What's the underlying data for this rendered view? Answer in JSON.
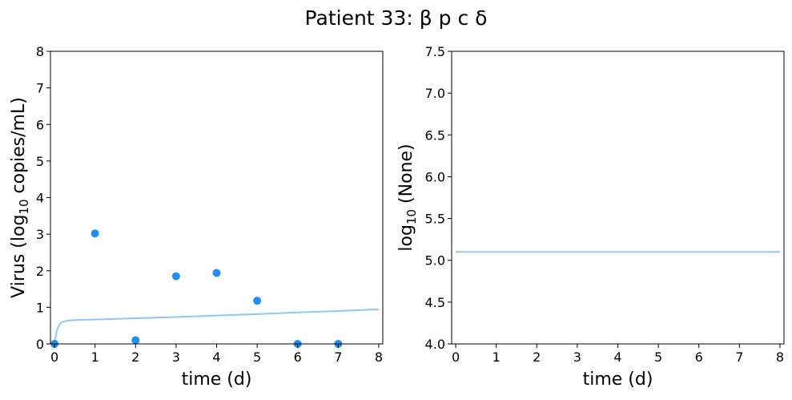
{
  "figure": {
    "title": "Patient 33: β p c δ"
  },
  "chart_data": [
    {
      "type": "scatter",
      "xlabel": "time (d)",
      "ylabel_prefix": "Virus (log",
      "ylabel_sub": "10",
      "ylabel_suffix": " copies/mL)",
      "xlim": [
        -0.1,
        8.1
      ],
      "ylim": [
        0,
        8
      ],
      "xticks": [
        0,
        1,
        2,
        3,
        4,
        5,
        6,
        7,
        8
      ],
      "yticks": [
        0,
        1,
        2,
        3,
        4,
        5,
        6,
        7,
        8
      ],
      "grid": false,
      "series": [
        {
          "kind": "points",
          "color": "#1f8ff0",
          "x": [
            0,
            1,
            2,
            3,
            4,
            5,
            6,
            7
          ],
          "y": [
            0.0,
            3.02,
            0.1,
            1.85,
            1.94,
            1.18,
            0.0,
            0.0
          ]
        },
        {
          "kind": "line",
          "color": "#8ec8f7",
          "x": [
            0,
            0.03,
            0.06,
            0.1,
            0.15,
            0.2,
            0.3,
            0.4,
            0.6,
            0.8,
            1,
            2,
            3,
            4,
            5,
            6,
            7,
            8
          ],
          "y": [
            0.0,
            0.2,
            0.36,
            0.48,
            0.56,
            0.6,
            0.63,
            0.645,
            0.655,
            0.66,
            0.665,
            0.7,
            0.735,
            0.775,
            0.815,
            0.86,
            0.9,
            0.945
          ]
        }
      ]
    },
    {
      "type": "line",
      "xlabel": "time (d)",
      "ylabel_prefix": "log",
      "ylabel_sub": "10",
      "ylabel_suffix": " (None)",
      "xlim": [
        -0.1,
        8.1
      ],
      "ylim": [
        4.0,
        7.5
      ],
      "xticks": [
        0,
        1,
        2,
        3,
        4,
        5,
        6,
        7,
        8
      ],
      "yticks": [
        4.0,
        4.5,
        5.0,
        5.5,
        6.0,
        6.5,
        7.0,
        7.5
      ],
      "grid": false,
      "series": [
        {
          "kind": "line",
          "color": "#8ec8f7",
          "x": [
            0,
            8
          ],
          "y": [
            5.1,
            5.1
          ]
        }
      ]
    }
  ]
}
